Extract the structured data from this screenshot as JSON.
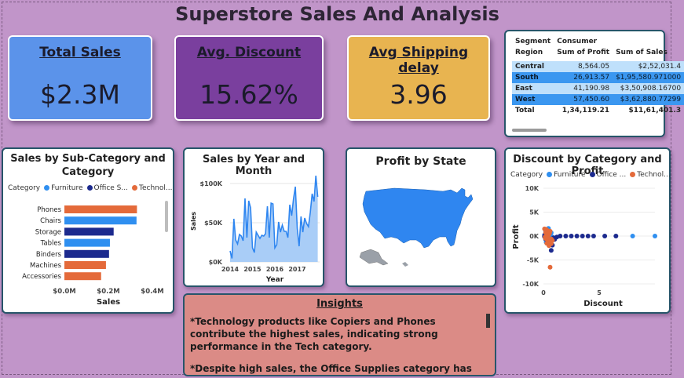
{
  "page": {
    "title": "Superstore Sales And Analysis"
  },
  "kpis": [
    {
      "label": "Total Sales",
      "value": "$2.3M",
      "color": "#5b93ea"
    },
    {
      "label": "Avg. Discount",
      "value": "15.62%",
      "color": "#7a3f9e"
    },
    {
      "label": "Avg Shipping delay",
      "value": "3.96",
      "color": "#e8b450"
    }
  ],
  "matrix": {
    "segment_label": "Segment",
    "segment_value": "Consumer",
    "region_label": "Region",
    "col_profit": "Sum of Profit",
    "col_sales": "Sum of Sales",
    "rows": [
      {
        "region": "Central",
        "profit": "8,564.05",
        "sales": "$2,52,031.4"
      },
      {
        "region": "South",
        "profit": "26,913.57",
        "sales": "$1,95,580.971000"
      },
      {
        "region": "East",
        "profit": "41,190.98",
        "sales": "$3,50,908.16700"
      },
      {
        "region": "West",
        "profit": "57,450.60",
        "sales": "$3,62,880.77299"
      }
    ],
    "total_label": "Total",
    "total_profit": "1,34,119.21",
    "total_sales": "$11,61,401.3"
  },
  "bar_panel": {
    "title_line1": "Sales by Sub-Category and",
    "title_line2": "Category",
    "legend_label": "Category"
  },
  "line_panel": {
    "title": "Sales by Year and Month"
  },
  "map_panel": {
    "title": "Profit by State",
    "fill_color": "#2f86f0"
  },
  "scatter_panel": {
    "title": "Discount by Category and Profit",
    "legend_label": "Category"
  },
  "insights": {
    "heading": "Insights",
    "p1": "*Technology products like Copiers and Phones contribute the highest sales, indicating strong performance in the Tech category.",
    "p2": "*Despite high sales, the Office Supplies category has"
  },
  "chart_data": [
    {
      "type": "bar",
      "title": "Sales by Sub-Category and Category",
      "xlabel": "Sales",
      "ylabel": "",
      "legend": [
        {
          "name": "Furniture",
          "color": "#2f8ff0"
        },
        {
          "name": "Office S...",
          "color": "#1c2a8e"
        },
        {
          "name": "Technol...",
          "color": "#e46a3a"
        }
      ],
      "categories": [
        "Phones",
        "Chairs",
        "Storage",
        "Tables",
        "Binders",
        "Machines",
        "Accessories"
      ],
      "values": [
        330000,
        328000,
        224000,
        207000,
        203000,
        189000,
        167000
      ],
      "category_of_bar": [
        "Technol...",
        "Furniture",
        "Office S...",
        "Furniture",
        "Office S...",
        "Technol...",
        "Technol..."
      ],
      "xlim": [
        0,
        400000
      ],
      "xticks": [
        0,
        200000,
        400000
      ],
      "xtick_labels": [
        "$0.0M",
        "$0.2M",
        "$0.4M"
      ]
    },
    {
      "type": "area",
      "title": "Sales by Year and Month",
      "xlabel": "Year",
      "ylabel": "Sales",
      "xlim": [
        2014,
        2018
      ],
      "ylim": [
        0,
        110000
      ],
      "xtick_labels": [
        "2014",
        "2015",
        "2016",
        "2017"
      ],
      "ytick_labels": [
        "$0K",
        "$50K",
        "$100K"
      ],
      "ytick_values": [
        0,
        50000,
        100000
      ],
      "color": "#2f86f0",
      "x": [
        "2014-01",
        "2014-02",
        "2014-03",
        "2014-04",
        "2014-05",
        "2014-06",
        "2014-07",
        "2014-08",
        "2014-09",
        "2014-10",
        "2014-11",
        "2014-12",
        "2015-01",
        "2015-02",
        "2015-03",
        "2015-04",
        "2015-05",
        "2015-06",
        "2015-07",
        "2015-08",
        "2015-09",
        "2015-10",
        "2015-11",
        "2015-12",
        "2016-01",
        "2016-02",
        "2016-03",
        "2016-04",
        "2016-05",
        "2016-06",
        "2016-07",
        "2016-08",
        "2016-09",
        "2016-10",
        "2016-11",
        "2016-12",
        "2017-01",
        "2017-02",
        "2017-03",
        "2017-04",
        "2017-05",
        "2017-06",
        "2017-07",
        "2017-08",
        "2017-09",
        "2017-10",
        "2017-11",
        "2017-12"
      ],
      "values": [
        14000,
        4500,
        55000,
        28000,
        23000,
        35000,
        33000,
        27000,
        81000,
        31000,
        78000,
        69000,
        18000,
        12000,
        38000,
        34000,
        30000,
        34000,
        33000,
        36000,
        71000,
        31000,
        75000,
        74000,
        18000,
        22000,
        51000,
        38000,
        47000,
        39000,
        39000,
        31000,
        73000,
        59000,
        80000,
        96000,
        43000,
        20000,
        58000,
        38000,
        56000,
        49000,
        45000,
        63000,
        87000,
        77000,
        118000,
        83000
      ]
    },
    {
      "type": "scatter",
      "title": "Discount by Category and Profit",
      "xlabel": "Discount",
      "ylabel": "Profit",
      "xlim": [
        0,
        10
      ],
      "ylim": [
        -10000,
        10000
      ],
      "xtick_labels": [
        "0",
        "5"
      ],
      "ytick_labels": [
        "10K",
        "5K",
        "0K",
        "-5K",
        "-10K"
      ],
      "ytick_values": [
        10000,
        5000,
        0,
        -5000,
        -10000
      ],
      "legend": [
        {
          "name": "Furniture",
          "color": "#2f8ff0"
        },
        {
          "name": "Office ...",
          "color": "#1c2a8e"
        },
        {
          "name": "Technol...",
          "color": "#e46a3a"
        }
      ],
      "series": [
        {
          "name": "Furniture",
          "x": [
            0.1,
            0.2,
            0.3,
            0.4,
            0.5,
            0.6,
            0.7,
            0.8,
            0.3,
            0.2,
            0.5,
            0.6,
            0.4,
            0.3,
            0.2,
            0.1,
            0.45,
            0.55,
            0.35,
            0.25,
            8.0,
            10.0
          ],
          "y": [
            200,
            -400,
            600,
            -900,
            300,
            -1500,
            700,
            -200,
            1200,
            -700,
            -300,
            500,
            -1100,
            100,
            900,
            -100,
            1600,
            -600,
            400,
            -1300,
            0,
            0
          ]
        },
        {
          "name": "Office ...",
          "x": [
            0.1,
            0.2,
            0.3,
            0.5,
            0.7,
            0.8,
            1.0,
            1.5,
            2.0,
            2.5,
            3.0,
            3.5,
            4.0,
            4.5,
            0.4,
            0.6,
            0.9,
            1.2,
            0.3,
            0.2,
            0.15,
            0.1,
            0.35,
            0.25,
            0.7,
            5.5,
            6.5
          ],
          "y": [
            100,
            -300,
            400,
            -1200,
            -3000,
            -1900,
            -700,
            0,
            0,
            0,
            0,
            0,
            0,
            0,
            500,
            -800,
            -400,
            -200,
            200,
            -600,
            300,
            -100,
            800,
            -500,
            -1600,
            0,
            0
          ]
        },
        {
          "name": "Technol...",
          "x": [
            0.1,
            0.2,
            0.3,
            0.4,
            0.5,
            0.6,
            0.7,
            0.8,
            0.4,
            0.3,
            0.2,
            0.5,
            0.6,
            0.7,
            0.45,
            0.35,
            0.25,
            0.15,
            0.65,
            0.55
          ],
          "y": [
            1500,
            -500,
            900,
            -1100,
            400,
            -6500,
            -1600,
            -900,
            1100,
            -1500,
            700,
            -2000,
            1000,
            -600,
            200,
            -300,
            1400,
            -200,
            -1300,
            600
          ]
        }
      ]
    }
  ]
}
